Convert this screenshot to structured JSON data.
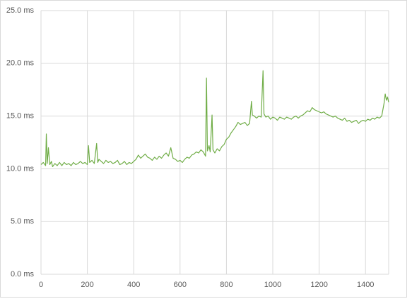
{
  "chart_data": {
    "type": "line",
    "x": [
      0,
      10,
      20,
      23,
      27,
      32,
      38,
      45,
      50,
      60,
      70,
      80,
      90,
      100,
      110,
      120,
      130,
      140,
      150,
      160,
      170,
      180,
      190,
      200,
      205,
      210,
      220,
      230,
      240,
      245,
      250,
      260,
      270,
      280,
      290,
      300,
      310,
      320,
      330,
      340,
      350,
      360,
      370,
      380,
      390,
      400,
      410,
      420,
      430,
      440,
      450,
      460,
      470,
      480,
      490,
      500,
      510,
      520,
      530,
      540,
      550,
      560,
      570,
      580,
      590,
      600,
      610,
      620,
      630,
      640,
      650,
      660,
      670,
      680,
      690,
      700,
      710,
      714,
      718,
      725,
      730,
      738,
      742,
      750,
      760,
      770,
      780,
      790,
      800,
      810,
      820,
      830,
      840,
      850,
      860,
      870,
      880,
      890,
      900,
      908,
      912,
      920,
      930,
      940,
      950,
      958,
      962,
      970,
      980,
      990,
      1000,
      1010,
      1020,
      1030,
      1040,
      1050,
      1060,
      1070,
      1080,
      1090,
      1100,
      1110,
      1120,
      1130,
      1140,
      1150,
      1160,
      1170,
      1180,
      1190,
      1200,
      1210,
      1220,
      1230,
      1240,
      1250,
      1260,
      1270,
      1280,
      1290,
      1300,
      1310,
      1320,
      1330,
      1340,
      1350,
      1360,
      1370,
      1380,
      1390,
      1400,
      1410,
      1420,
      1430,
      1440,
      1450,
      1460,
      1470,
      1480,
      1485,
      1490,
      1495,
      1500
    ],
    "series": [
      {
        "color": "#70ad47",
        "values": [
          10.4,
          10.6,
          10.3,
          13.3,
          10.5,
          12.0,
          10.4,
          10.7,
          10.2,
          10.5,
          10.3,
          10.6,
          10.3,
          10.6,
          10.4,
          10.5,
          10.3,
          10.6,
          10.4,
          10.5,
          10.7,
          10.5,
          10.6,
          10.4,
          12.2,
          10.6,
          10.8,
          10.5,
          12.4,
          10.6,
          10.9,
          10.7,
          10.5,
          10.8,
          10.6,
          10.7,
          10.5,
          10.6,
          10.8,
          10.4,
          10.5,
          10.7,
          10.4,
          10.6,
          10.5,
          10.7,
          10.9,
          11.3,
          11.0,
          11.2,
          11.4,
          11.1,
          11.0,
          10.8,
          11.1,
          10.9,
          11.2,
          11.0,
          11.3,
          11.5,
          11.2,
          12.0,
          11.0,
          10.9,
          10.7,
          10.8,
          10.6,
          10.9,
          11.1,
          11.0,
          11.3,
          11.4,
          11.6,
          11.5,
          11.8,
          11.6,
          11.2,
          18.6,
          11.7,
          12.2,
          11.6,
          15.1,
          11.8,
          11.5,
          11.9,
          11.7,
          12.1,
          12.3,
          12.8,
          13.0,
          13.4,
          13.7,
          14.0,
          14.4,
          14.2,
          14.3,
          14.4,
          14.1,
          14.3,
          16.4,
          15.1,
          15.0,
          14.8,
          15.0,
          14.9,
          19.3,
          15.2,
          14.9,
          15.0,
          14.7,
          14.9,
          14.8,
          14.6,
          14.9,
          14.8,
          14.7,
          14.9,
          14.8,
          14.7,
          14.9,
          15.0,
          14.8,
          15.0,
          15.1,
          15.3,
          15.5,
          15.4,
          15.8,
          15.6,
          15.5,
          15.4,
          15.3,
          15.4,
          15.2,
          15.1,
          15.0,
          14.9,
          15.0,
          14.8,
          14.7,
          14.6,
          14.8,
          14.5,
          14.6,
          14.4,
          14.5,
          14.6,
          14.3,
          14.5,
          14.6,
          14.5,
          14.7,
          14.6,
          14.8,
          14.7,
          14.9,
          14.8,
          15.0,
          16.2,
          17.1,
          16.5,
          16.8,
          16.3
        ]
      }
    ],
    "xlim": [
      0,
      1500
    ],
    "xticks": [
      0,
      200,
      400,
      600,
      800,
      1000,
      1200,
      1400
    ],
    "ylim": [
      0,
      25
    ],
    "yticks": [
      {
        "value": 0,
        "label": "0.0 ms"
      },
      {
        "value": 5,
        "label": "5.0 ms"
      },
      {
        "value": 10,
        "label": "10.0 ms"
      },
      {
        "value": 15,
        "label": "15.0 ms"
      },
      {
        "value": 20,
        "label": "20.0 ms"
      },
      {
        "value": 25,
        "label": "25.0 ms"
      }
    ],
    "grid": true
  }
}
